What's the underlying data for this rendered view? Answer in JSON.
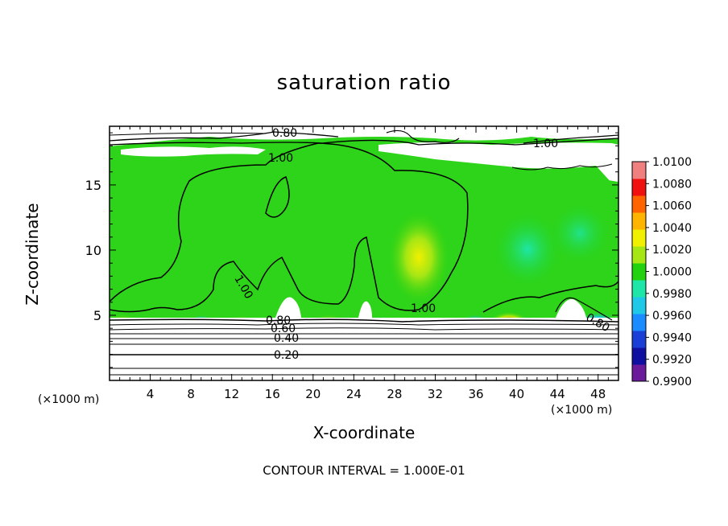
{
  "chart_data": {
    "type": "heatmap",
    "title": "saturation ratio",
    "xlabel": "X-coordinate",
    "ylabel": "Z-coordinate",
    "x_unit": "(×1000 m)",
    "y_unit": "",
    "footer": "CONTOUR INTERVAL = 1.000E-01",
    "xlim": [
      0,
      50
    ],
    "ylim": [
      0,
      19.5
    ],
    "x_ticks": [
      4,
      8,
      12,
      16,
      20,
      24,
      28,
      32,
      36,
      40,
      44,
      48
    ],
    "y_ticks": [
      5,
      10,
      15
    ],
    "colorbar": {
      "min": 0.99,
      "max": 1.01,
      "ticks": [
        "1.0100",
        "1.0080",
        "1.0060",
        "1.0040",
        "1.0020",
        "1.0000",
        "0.9980",
        "0.9960",
        "0.9940",
        "0.9920",
        "0.9900"
      ],
      "colors": [
        "#6a1b9a",
        "#1010a0",
        "#1a3fd6",
        "#1a8cff",
        "#1ec8e6",
        "#1ee6a8",
        "#23d20f",
        "#a6e614",
        "#f0f000",
        "#ffb400",
        "#ff6400",
        "#f01010",
        "#f08080"
      ]
    },
    "contour_labels": [
      "0.80",
      "1.00",
      "1.00",
      "1.00",
      "1.00",
      "0.80",
      "0.80",
      "0.60",
      "0.40",
      "0.20"
    ]
  }
}
